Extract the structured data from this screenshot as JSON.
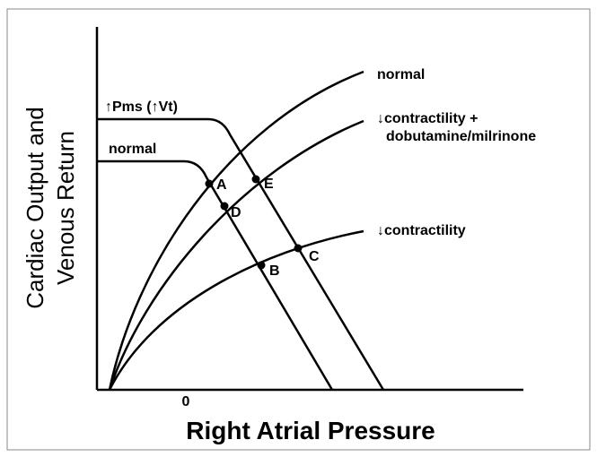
{
  "y_axis_label": [
    "Cardiac Output and",
    "Venous Return"
  ],
  "x_axis_label": "Right Atrial Pressure",
  "x_tick": "0",
  "cardiac_curves": [
    {
      "label": [
        "normal"
      ]
    },
    {
      "label": [
        "↓contractility +",
        "dobutamine/milrinone"
      ]
    },
    {
      "label": [
        "↓contractility"
      ]
    }
  ],
  "venous_curves": [
    {
      "label": "↑Pms (↑Vt)"
    },
    {
      "label": "normal"
    }
  ],
  "points": [
    "A",
    "B",
    "C",
    "D",
    "E"
  ]
}
